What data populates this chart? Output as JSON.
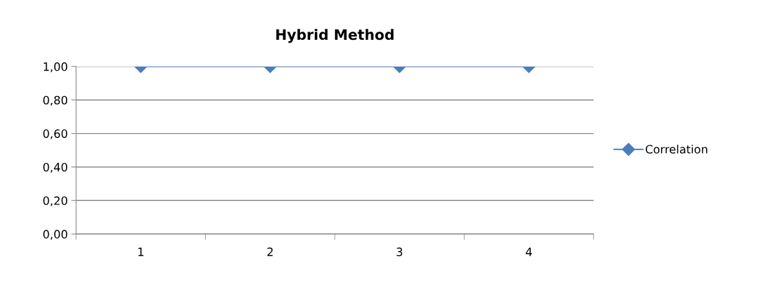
{
  "chart_data": {
    "type": "line",
    "title": "Hybrid Method",
    "categories": [
      "1",
      "2",
      "3",
      "4"
    ],
    "series": [
      {
        "name": "Correlation",
        "color": "#4a7ebb",
        "values": [
          1.0,
          1.0,
          1.0,
          1.0
        ]
      }
    ],
    "ylim": [
      0,
      1
    ],
    "yticks": [
      {
        "value": 0,
        "label": "0,00"
      },
      {
        "value": 0.2,
        "label": "0,20"
      },
      {
        "value": 0.4,
        "label": "0,40"
      },
      {
        "value": 0.6,
        "label": "0,60"
      },
      {
        "value": 0.8,
        "label": "0,80"
      },
      {
        "value": 1,
        "label": "1,00"
      }
    ],
    "grid": "y",
    "legend": "right",
    "marker": "diamond",
    "line_style": "solid"
  }
}
